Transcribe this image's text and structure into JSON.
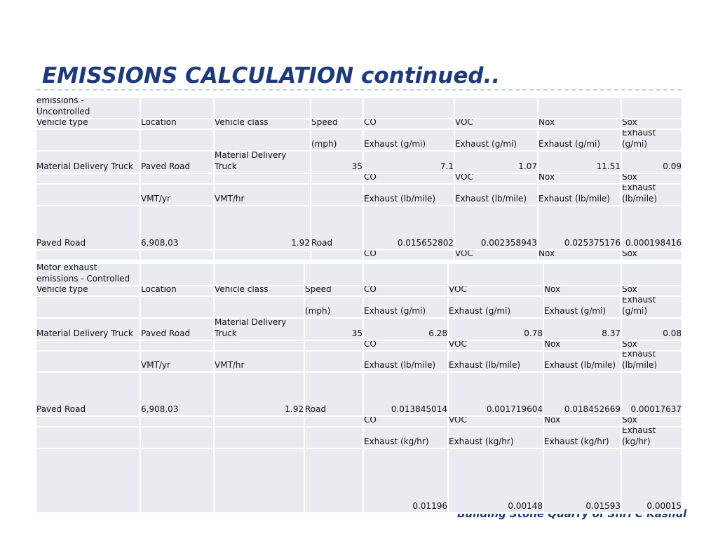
{
  "title": "EMISSIONS CALCULATION continued..",
  "footer": "Building Stone Quarry of Shri C Kashul",
  "tables": [
    {
      "rows": [
        [
          "Motor exhaust emissions - Uncontrolled",
          null,
          null,
          null,
          null,
          null,
          null,
          null
        ],
        [
          "Vehicle type",
          "Location",
          "Vehicle class",
          "Speed",
          "CO",
          "VOC",
          "Nox",
          "Sox"
        ],
        [
          null,
          null,
          null,
          "(mph)",
          "Exhaust (g/mi)",
          "Exhaust (g/mi)",
          "Exhaust (g/mi)",
          "Exhaust (g/mi)"
        ],
        [
          "Material Delivery Truck",
          "Paved Road",
          "Material Delivery Truck",
          "35",
          "7.1",
          "1.07",
          "11.51",
          "0.09"
        ],
        [
          null,
          null,
          null,
          null,
          "CO",
          "VOC",
          "Nox",
          "Sox"
        ],
        [
          null,
          "VMT/yr",
          "VMT/hr",
          null,
          "Exhaust (lb/mile)",
          "Exhaust (lb/mile)",
          "Exhaust (lb/mile)",
          "Exhaust (lb/mile)"
        ],
        [
          "Paved Road",
          "6,908.03",
          "1.92",
          "Road",
          "0.015652802",
          "0.002358943",
          "0.025375176",
          "0.000198416"
        ],
        [
          null,
          null,
          null,
          null,
          "CO",
          "VOC",
          "Nox",
          "Sox"
        ]
      ]
    },
    {
      "rows": [
        [
          "Motor exhaust emissions - Controlled",
          null,
          null,
          null,
          null,
          null,
          null,
          null
        ],
        [
          "Vehicle type",
          "Location",
          "Vehicle class",
          "Speed",
          "CO",
          "VOC",
          "Nox",
          "Sox"
        ],
        [
          null,
          null,
          null,
          "(mph)",
          "Exhaust (g/mi)",
          "Exhaust (g/mi)",
          "Exhaust (g/mi)",
          "Exhaust (g/mi)"
        ],
        [
          "Material Delivery Truck",
          "Paved Road",
          "Material Delivery Truck",
          "35",
          "6.28",
          "0.78",
          "8.37",
          "0.08"
        ],
        [
          null,
          null,
          null,
          null,
          "CO",
          "VOC",
          "Nox",
          "Sox"
        ],
        [
          null,
          "VMT/yr",
          "VMT/hr",
          null,
          "Exhaust (lb/mile)",
          "Exhaust (lb/mile)",
          "Exhaust (lb/mile)",
          "Exhaust (lb/mile)"
        ],
        [
          "Paved Road",
          "6,908.03",
          "1.92",
          "Road",
          "0.013845014",
          "0.001719604",
          "0.018452669",
          "0.00017637"
        ],
        [
          null,
          null,
          null,
          null,
          "CO",
          "VOC",
          "Nox",
          "Sox"
        ],
        [
          null,
          null,
          null,
          null,
          "Exhaust (kg/hr)",
          "Exhaust (kg/hr)",
          "Exhaust (kg/hr)",
          "Exhaust (kg/hr)"
        ],
        [
          null,
          null,
          null,
          null,
          "0.01196",
          "0.00148",
          "0.01593",
          "0.00015"
        ]
      ]
    }
  ]
}
